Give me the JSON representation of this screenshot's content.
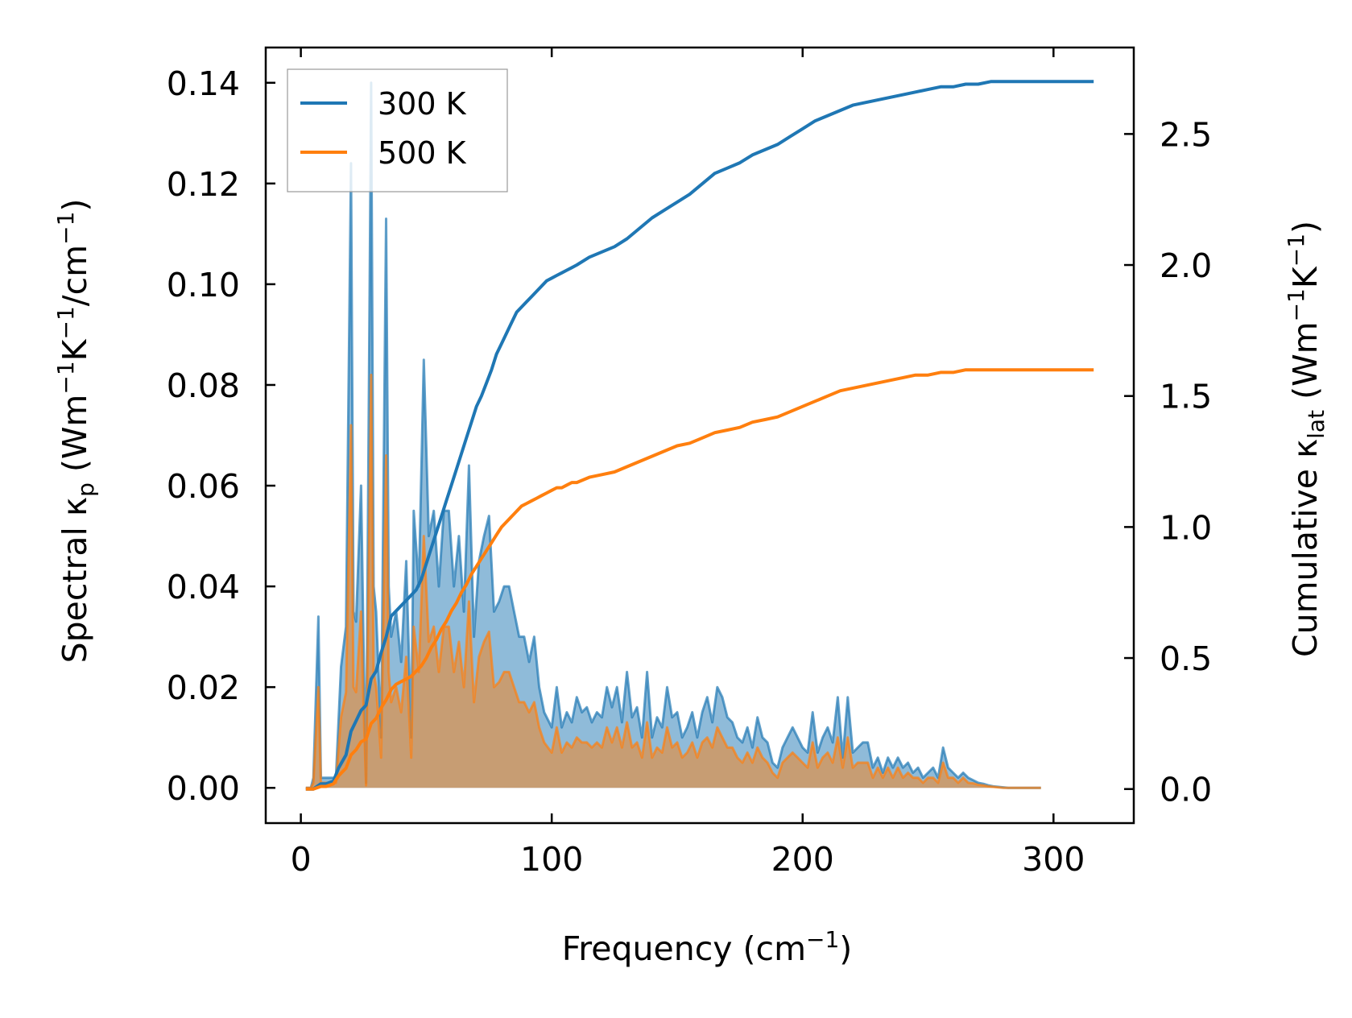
{
  "chart_data": {
    "type": "line",
    "colors": {
      "series_300": "#1f77b4",
      "series_500": "#ff7f0e",
      "axis": "#000000"
    },
    "xlabel": {
      "main": "Frequency (cm",
      "sup": "−1",
      "tail": ")"
    },
    "ylabel_left": {
      "p1": "Spectral κ",
      "sub": "p",
      "p2": " (Wm",
      "sup1": "−1",
      "p3": "K",
      "sup2": "−1",
      "p4": "/cm",
      "sup3": "−1",
      "p5": ")"
    },
    "ylabel_right": {
      "p1": "Cumulative κ",
      "sub": "lat",
      "p2": " (Wm",
      "sup1": "−1",
      "p3": "K",
      "sup2": "−1",
      "p4": ")"
    },
    "xlim": [
      -14,
      332
    ],
    "ylim_left": [
      -0.007,
      0.147
    ],
    "ylim_right": [
      -0.13,
      2.83
    ],
    "x_ticks": [
      0,
      100,
      200,
      300
    ],
    "x_tick_labels": [
      "0",
      "100",
      "200",
      "300"
    ],
    "y_left_ticks": [
      0,
      0.02,
      0.04,
      0.06,
      0.08,
      0.1,
      0.12,
      0.14
    ],
    "y_left_tick_labels": [
      "0.00",
      "0.02",
      "0.04",
      "0.06",
      "0.08",
      "0.10",
      "0.12",
      "0.14"
    ],
    "y_right_ticks": [
      0,
      0.5,
      1.0,
      1.5,
      2.0,
      2.5
    ],
    "y_right_tick_labels": [
      "0.0",
      "0.5",
      "1.0",
      "1.5",
      "2.0",
      "2.5"
    ],
    "legend": {
      "location": "top-left",
      "entries": [
        "300 K",
        "500 K"
      ]
    },
    "spectral": {
      "x": [
        2,
        4,
        5,
        7,
        8,
        10,
        12,
        14,
        16,
        18,
        20,
        21,
        22,
        24,
        25,
        26,
        28,
        29,
        30,
        32,
        34,
        35,
        36,
        38,
        40,
        42,
        44,
        45,
        47,
        49,
        51,
        53,
        55,
        57,
        59,
        61,
        63,
        65,
        67,
        69,
        71,
        73,
        75,
        77,
        79,
        81,
        83,
        85,
        87,
        89,
        91,
        93,
        95,
        97,
        100,
        102,
        104,
        106,
        108,
        110,
        112,
        114,
        116,
        118,
        120,
        122,
        124,
        126,
        128,
        130,
        132,
        134,
        136,
        138,
        140,
        142,
        144,
        146,
        148,
        150,
        152,
        154,
        156,
        158,
        160,
        162,
        164,
        166,
        168,
        170,
        172,
        174,
        176,
        178,
        180,
        182,
        184,
        186,
        188,
        190,
        192,
        194,
        196,
        198,
        200,
        202,
        204,
        206,
        208,
        210,
        212,
        214,
        216,
        218,
        220,
        222,
        224,
        226,
        228,
        230,
        232,
        234,
        236,
        238,
        240,
        242,
        244,
        246,
        248,
        250,
        252,
        254,
        256,
        258,
        260,
        262,
        264,
        266,
        268,
        270,
        272,
        274,
        276,
        278,
        280,
        282,
        284,
        286,
        290,
        295,
        300,
        305,
        310,
        316
      ],
      "series": [
        {
          "name": "300 K",
          "values": [
            0.0,
            0.0,
            0.002,
            0.034,
            0.002,
            0.002,
            0.002,
            0.002,
            0.024,
            0.032,
            0.124,
            0.035,
            0.033,
            0.06,
            0.028,
            0.001,
            0.14,
            0.04,
            0.035,
            0.01,
            0.113,
            0.04,
            0.03,
            0.035,
            0.025,
            0.045,
            0.01,
            0.055,
            0.04,
            0.085,
            0.05,
            0.055,
            0.04,
            0.055,
            0.055,
            0.04,
            0.05,
            0.035,
            0.064,
            0.03,
            0.045,
            0.05,
            0.054,
            0.035,
            0.037,
            0.04,
            0.04,
            0.035,
            0.03,
            0.03,
            0.025,
            0.03,
            0.02,
            0.015,
            0.012,
            0.02,
            0.012,
            0.015,
            0.013,
            0.018,
            0.015,
            0.016,
            0.013,
            0.015,
            0.014,
            0.02,
            0.016,
            0.02,
            0.013,
            0.023,
            0.014,
            0.016,
            0.01,
            0.023,
            0.01,
            0.014,
            0.012,
            0.02,
            0.014,
            0.015,
            0.01,
            0.012,
            0.015,
            0.01,
            0.015,
            0.018,
            0.013,
            0.02,
            0.018,
            0.014,
            0.013,
            0.01,
            0.009,
            0.012,
            0.008,
            0.014,
            0.01,
            0.009,
            0.005,
            0.004,
            0.008,
            0.01,
            0.012,
            0.01,
            0.008,
            0.007,
            0.015,
            0.007,
            0.01,
            0.012,
            0.009,
            0.018,
            0.006,
            0.018,
            0.007,
            0.008,
            0.009,
            0.009,
            0.004,
            0.006,
            0.003,
            0.006,
            0.004,
            0.006,
            0.004,
            0.005,
            0.003,
            0.004,
            0.002,
            0.003,
            0.004,
            0.002,
            0.008,
            0.004,
            0.003,
            0.002,
            0.003,
            0.002,
            0.0015,
            0.001,
            0.0008,
            0.0005,
            0.0003,
            0.0002,
            0.0001,
            0,
            0,
            0,
            0,
            0
          ]
        },
        {
          "name": "500 K",
          "values": [
            0.0,
            0.0,
            0.001,
            0.02,
            0.001,
            0.001,
            0.001,
            0.001,
            0.014,
            0.019,
            0.072,
            0.02,
            0.019,
            0.035,
            0.016,
            0.0005,
            0.082,
            0.023,
            0.02,
            0.006,
            0.066,
            0.023,
            0.017,
            0.02,
            0.015,
            0.026,
            0.006,
            0.032,
            0.023,
            0.05,
            0.029,
            0.032,
            0.023,
            0.032,
            0.032,
            0.023,
            0.029,
            0.02,
            0.037,
            0.017,
            0.026,
            0.029,
            0.031,
            0.02,
            0.021,
            0.023,
            0.023,
            0.02,
            0.017,
            0.017,
            0.015,
            0.017,
            0.012,
            0.009,
            0.007,
            0.012,
            0.007,
            0.009,
            0.008,
            0.01,
            0.009,
            0.009,
            0.008,
            0.009,
            0.008,
            0.012,
            0.009,
            0.012,
            0.008,
            0.013,
            0.008,
            0.009,
            0.006,
            0.013,
            0.006,
            0.008,
            0.007,
            0.012,
            0.008,
            0.009,
            0.006,
            0.007,
            0.009,
            0.006,
            0.009,
            0.01,
            0.008,
            0.012,
            0.01,
            0.008,
            0.008,
            0.006,
            0.005,
            0.007,
            0.005,
            0.008,
            0.006,
            0.005,
            0.003,
            0.002,
            0.005,
            0.006,
            0.007,
            0.006,
            0.005,
            0.004,
            0.009,
            0.004,
            0.006,
            0.007,
            0.005,
            0.01,
            0.004,
            0.01,
            0.004,
            0.005,
            0.005,
            0.005,
            0.002,
            0.004,
            0.002,
            0.004,
            0.002,
            0.004,
            0.002,
            0.003,
            0.002,
            0.002,
            0.001,
            0.002,
            0.002,
            0.001,
            0.005,
            0.002,
            0.002,
            0.001,
            0.002,
            0.001,
            0.0009,
            0.0006,
            0.0005,
            0.0003,
            0.0002,
            0.0001,
            0,
            0,
            0,
            0,
            0,
            0
          ]
        }
      ]
    },
    "cumulative": {
      "x": [
        2,
        5,
        8,
        10,
        13,
        15,
        18,
        20,
        22,
        24,
        26,
        28,
        30,
        32,
        34,
        36,
        38,
        40,
        42,
        44,
        46,
        48,
        50,
        52,
        54,
        56,
        58,
        60,
        62,
        64,
        66,
        68,
        70,
        72,
        74,
        76,
        78,
        80,
        82,
        84,
        86,
        88,
        90,
        92,
        94,
        96,
        98,
        100,
        102,
        104,
        106,
        108,
        110,
        115,
        120,
        125,
        130,
        135,
        140,
        145,
        150,
        155,
        160,
        165,
        170,
        175,
        180,
        185,
        190,
        195,
        200,
        205,
        210,
        215,
        220,
        225,
        230,
        235,
        240,
        245,
        250,
        255,
        260,
        265,
        270,
        275,
        280,
        285,
        290,
        300,
        316
      ],
      "series": [
        {
          "name": "300 K",
          "values": [
            0,
            0,
            0.02,
            0.02,
            0.03,
            0.08,
            0.13,
            0.22,
            0.26,
            0.3,
            0.32,
            0.42,
            0.45,
            0.52,
            0.58,
            0.66,
            0.68,
            0.7,
            0.72,
            0.74,
            0.76,
            0.8,
            0.86,
            0.92,
            0.98,
            1.04,
            1.1,
            1.16,
            1.22,
            1.28,
            1.34,
            1.4,
            1.46,
            1.5,
            1.55,
            1.6,
            1.66,
            1.7,
            1.74,
            1.78,
            1.82,
            1.84,
            1.86,
            1.88,
            1.9,
            1.92,
            1.94,
            1.95,
            1.96,
            1.97,
            1.98,
            1.99,
            2.0,
            2.03,
            2.05,
            2.07,
            2.1,
            2.14,
            2.18,
            2.21,
            2.24,
            2.27,
            2.31,
            2.35,
            2.37,
            2.39,
            2.42,
            2.44,
            2.46,
            2.49,
            2.52,
            2.55,
            2.57,
            2.59,
            2.61,
            2.62,
            2.63,
            2.64,
            2.65,
            2.66,
            2.67,
            2.68,
            2.68,
            2.69,
            2.69,
            2.7,
            2.7,
            2.7,
            2.7,
            2.7,
            2.7
          ]
        },
        {
          "name": "500 K",
          "values": [
            0,
            0,
            0.01,
            0.01,
            0.02,
            0.05,
            0.08,
            0.13,
            0.15,
            0.18,
            0.19,
            0.25,
            0.27,
            0.31,
            0.34,
            0.38,
            0.4,
            0.41,
            0.42,
            0.43,
            0.45,
            0.47,
            0.5,
            0.54,
            0.57,
            0.61,
            0.64,
            0.68,
            0.71,
            0.75,
            0.78,
            0.82,
            0.85,
            0.88,
            0.91,
            0.94,
            0.97,
            1.0,
            1.02,
            1.04,
            1.06,
            1.08,
            1.09,
            1.1,
            1.11,
            1.12,
            1.13,
            1.14,
            1.15,
            1.15,
            1.16,
            1.17,
            1.17,
            1.19,
            1.2,
            1.21,
            1.23,
            1.25,
            1.27,
            1.29,
            1.31,
            1.32,
            1.34,
            1.36,
            1.37,
            1.38,
            1.4,
            1.41,
            1.42,
            1.44,
            1.46,
            1.48,
            1.5,
            1.52,
            1.53,
            1.54,
            1.55,
            1.56,
            1.57,
            1.58,
            1.58,
            1.59,
            1.59,
            1.6,
            1.6,
            1.6,
            1.6,
            1.6,
            1.6,
            1.6,
            1.6
          ]
        }
      ]
    }
  }
}
